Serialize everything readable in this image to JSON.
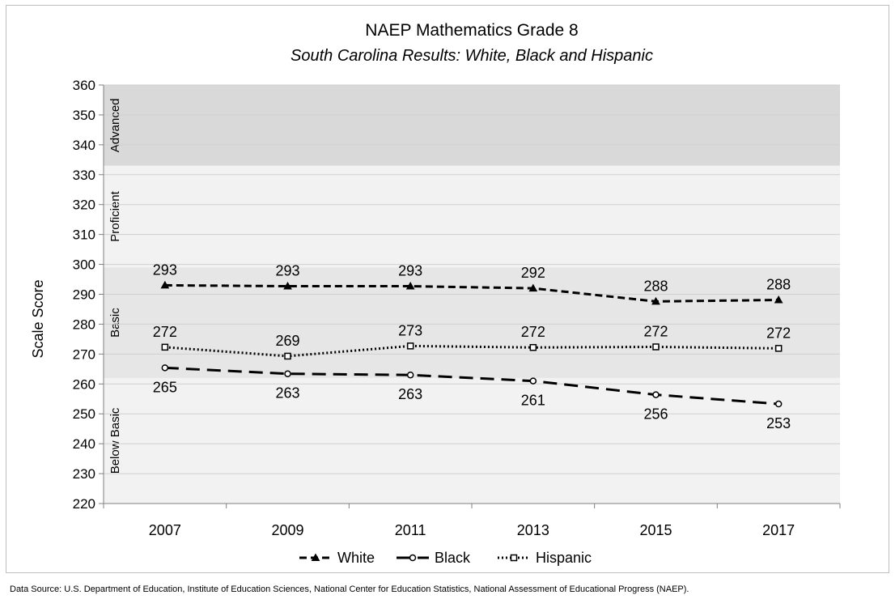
{
  "chart_data": {
    "type": "line",
    "title": "NAEP Mathematics Grade 8",
    "subtitle": "South Carolina Results: White, Black and Hispanic",
    "xlabel": "",
    "ylabel": "Scale Score",
    "categories": [
      "2007",
      "2009",
      "2011",
      "2013",
      "2015",
      "2017"
    ],
    "ylim": [
      220,
      360
    ],
    "yticks": [
      "220",
      "230",
      "240",
      "250",
      "260",
      "270",
      "280",
      "290",
      "300",
      "310",
      "320",
      "330",
      "340",
      "350",
      "360"
    ],
    "grid": true,
    "legend_position": "bottom",
    "bands": [
      {
        "label": "Below Basic",
        "from": 220,
        "to": 262,
        "color": "#f2f2f2"
      },
      {
        "label": "Basic",
        "from": 262,
        "to": 299,
        "color": "#e6e6e6"
      },
      {
        "label": "Proficient",
        "from": 299,
        "to": 333,
        "color": "#f2f2f2"
      },
      {
        "label": "Advanced",
        "from": 333,
        "to": 360,
        "color": "#d9d9d9"
      }
    ],
    "series": [
      {
        "name": "White",
        "values": [
          293,
          292.7,
          292.7,
          292,
          287.6,
          288.1
        ],
        "labels": [
          "293",
          "293",
          "293",
          "292",
          "288",
          "288"
        ],
        "label_side": "above",
        "marker": "triangle",
        "dash": "dashed",
        "color": "#000000"
      },
      {
        "name": "Black",
        "values": [
          265.4,
          263.4,
          263,
          261,
          256.4,
          253.3
        ],
        "labels": [
          "265",
          "263",
          "263",
          "261",
          "256",
          "253"
        ],
        "label_side": "below",
        "marker": "circle",
        "dash": "longdash",
        "color": "#000000"
      },
      {
        "name": "Hispanic",
        "values": [
          272.3,
          269.3,
          272.7,
          272.2,
          272.4,
          271.9
        ],
        "labels": [
          "272",
          "269",
          "273",
          "272",
          "272",
          "272"
        ],
        "label_side": "above",
        "marker": "square",
        "dash": "dotted",
        "color": "#000000"
      }
    ]
  },
  "footer": {
    "source": "Data Source: U.S. Department of Education, Institute of Education Sciences, National Center for Education Statistics, National Assessment of Educational Progress (NAEP)."
  }
}
